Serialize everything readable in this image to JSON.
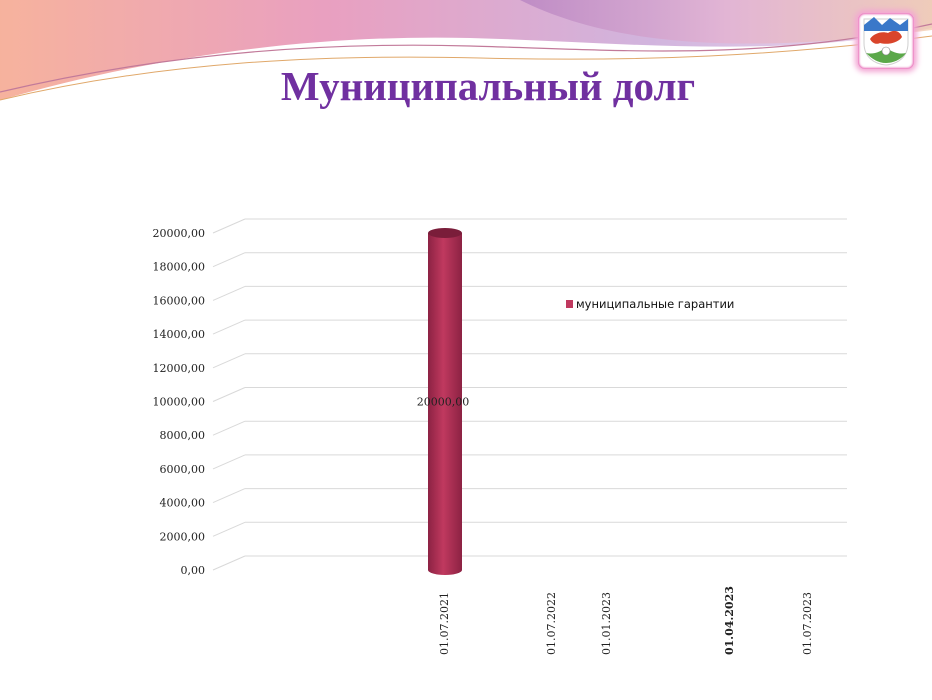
{
  "slide": {
    "title": "Муниципальный долг"
  },
  "icons": {
    "logo": "coat-of-arms-icon"
  },
  "colors": {
    "title": "#7030a0",
    "bar": "#c0395f",
    "bar_dark": "#7a1d3a",
    "grid": "#d9d9d9"
  },
  "chart_data": {
    "type": "bar",
    "style": "3d-cylinder",
    "categories": [
      "01.07.2021",
      "01.07.2022",
      "01.01.2023",
      "01.04.2023",
      "01.07.2023"
    ],
    "category_bold": [
      false,
      false,
      false,
      true,
      false
    ],
    "series": [
      {
        "name": "муниципальные гарантии",
        "values": [
          20000,
          0,
          0,
          0,
          0
        ],
        "data_labels": [
          "20000,00",
          "",
          "",
          "",
          ""
        ]
      }
    ],
    "y_ticks": [
      "0,00",
      "2000,00",
      "4000,00",
      "6000,00",
      "8000,00",
      "10000,00",
      "12000,00",
      "14000,00",
      "16000,00",
      "18000,00",
      "20000,00"
    ],
    "ylim": [
      0,
      20000
    ],
    "ytick_step": 2000,
    "grid": true,
    "legend": "center-right"
  }
}
